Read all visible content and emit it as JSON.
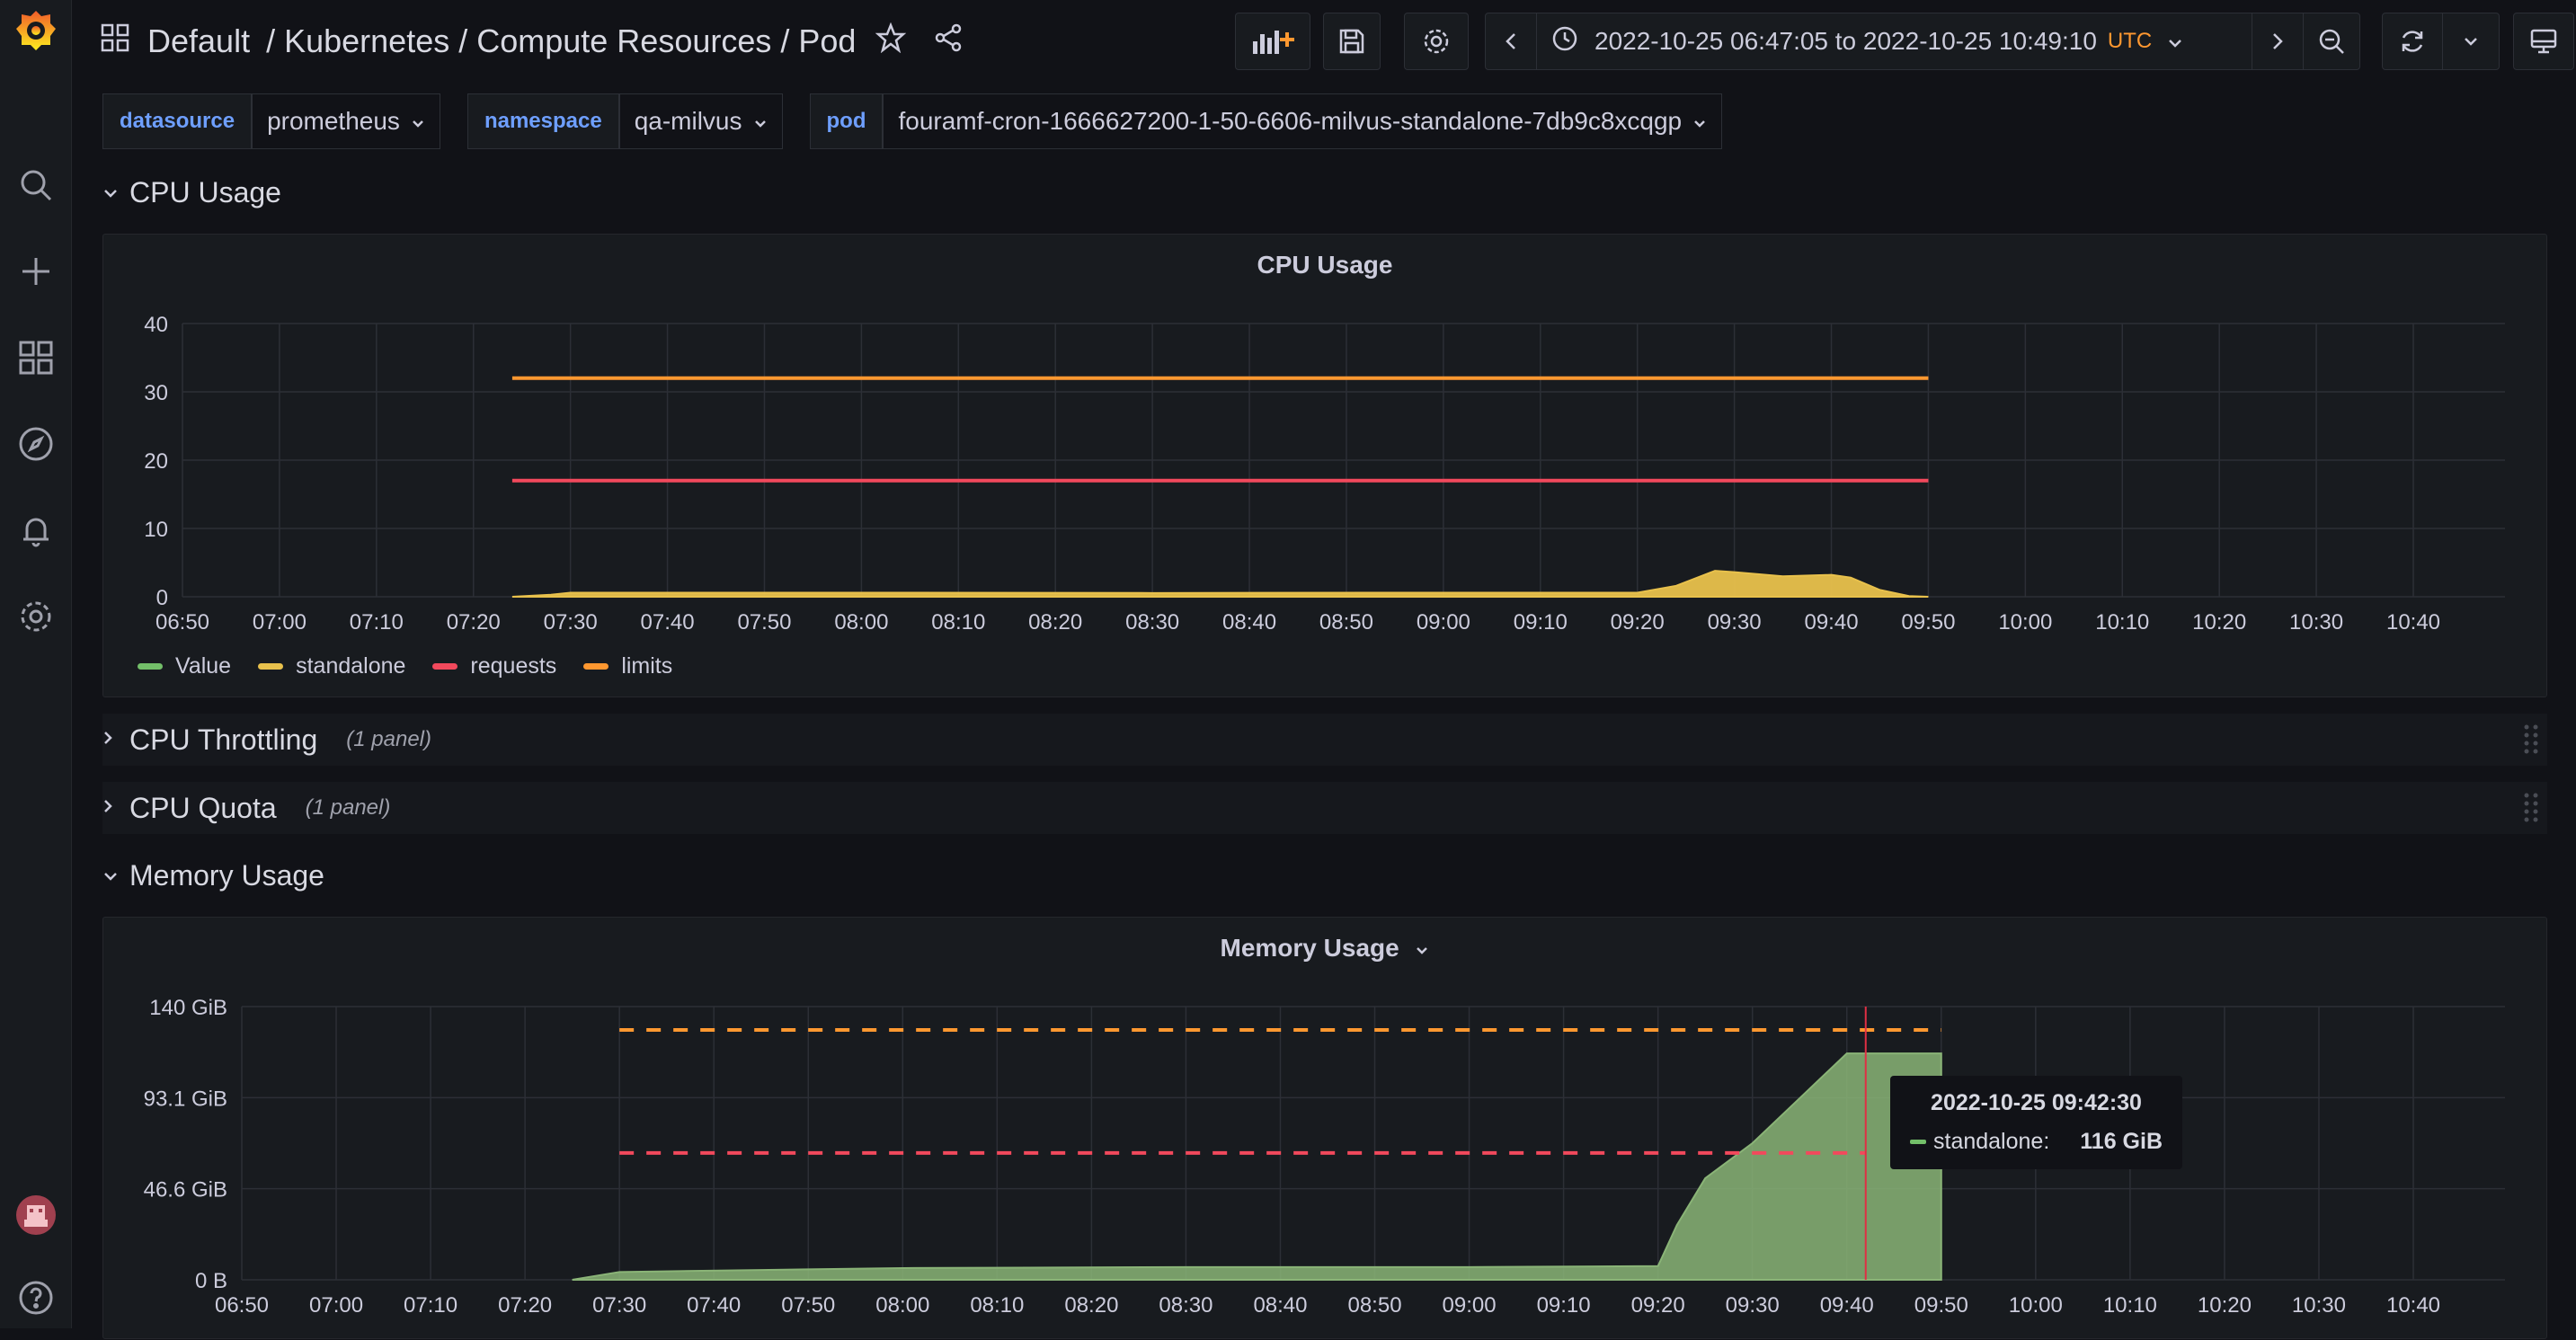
{
  "breadcrumb": {
    "root": "Default",
    "path": "/ Kubernetes / Compute Resources / Pod"
  },
  "timepicker": {
    "range": "2022-10-25 06:47:05 to 2022-10-25 10:49:10",
    "tz": "UTC"
  },
  "variables": [
    {
      "label": "datasource",
      "value": "prometheus"
    },
    {
      "label": "namespace",
      "value": "qa-milvus"
    },
    {
      "label": "pod",
      "value": "fouramf-cron-1666627200-1-50-6606-milvus-standalone-7db9c8xcqgp"
    }
  ],
  "rows": {
    "cpu_usage": "CPU Usage",
    "cpu_throttling": "CPU Throttling",
    "cpu_throttling_count": "(1 panel)",
    "cpu_quota": "CPU Quota",
    "cpu_quota_count": "(1 panel)",
    "memory_usage": "Memory Usage"
  },
  "colors": {
    "green": "#73bf69",
    "yellow": "#e8c14c",
    "red": "#f2495c",
    "orange": "#ff9830",
    "accent": "#ff7f00",
    "crosshair": "#e02f44"
  },
  "cpu_panel": {
    "title": "CPU Usage",
    "legend": [
      {
        "name": "Value",
        "color": "#73bf69"
      },
      {
        "name": "standalone",
        "color": "#e8c14c"
      },
      {
        "name": "requests",
        "color": "#f2495c"
      },
      {
        "name": "limits",
        "color": "#ff9830"
      }
    ]
  },
  "memory_panel": {
    "title": "Memory Usage"
  },
  "tooltip": {
    "time": "2022-10-25 09:42:30",
    "series": "standalone:",
    "value": "116 GiB"
  },
  "chart_data": [
    {
      "type": "area",
      "title": "CPU Usage",
      "x_ticks": [
        "06:50",
        "07:00",
        "07:10",
        "07:20",
        "07:30",
        "07:40",
        "07:50",
        "08:00",
        "08:10",
        "08:20",
        "08:30",
        "08:40",
        "08:50",
        "09:00",
        "09:10",
        "09:20",
        "09:30",
        "09:40",
        "09:50",
        "10:00",
        "10:10",
        "10:20",
        "10:30",
        "10:40"
      ],
      "y_ticks": [
        "0",
        "10",
        "20",
        "30",
        "40"
      ],
      "ylim": [
        0,
        40
      ],
      "series": [
        {
          "name": "standalone",
          "kind": "area",
          "x": [
            "07:24",
            "07:28",
            "07:30",
            "08:00",
            "08:30",
            "09:00",
            "09:20",
            "09:24",
            "09:28",
            "09:30",
            "09:35",
            "09:40",
            "09:42",
            "09:45",
            "09:48",
            "09:50"
          ],
          "values": [
            0,
            0.3,
            0.6,
            0.6,
            0.55,
            0.6,
            0.6,
            1.6,
            3.8,
            3.6,
            3.0,
            3.2,
            2.8,
            1.0,
            0.1,
            0
          ]
        },
        {
          "name": "requests",
          "kind": "line",
          "x": [
            "07:24",
            "09:50"
          ],
          "values": [
            17,
            17
          ]
        },
        {
          "name": "limits",
          "kind": "line",
          "x": [
            "07:24",
            "09:50"
          ],
          "values": [
            32,
            32
          ]
        }
      ]
    },
    {
      "type": "area",
      "title": "Memory Usage",
      "x_ticks": [
        "06:50",
        "07:00",
        "07:10",
        "07:20",
        "07:30",
        "07:40",
        "07:50",
        "08:00",
        "08:10",
        "08:20",
        "08:30",
        "08:40",
        "08:50",
        "09:00",
        "09:10",
        "09:20",
        "09:30",
        "09:40",
        "09:50",
        "10:00",
        "10:10",
        "10:20",
        "10:30",
        "10:40"
      ],
      "y_ticks": [
        "0 B",
        "46.6 GiB",
        "93.1 GiB",
        "140 GiB"
      ],
      "ylim": [
        0,
        140
      ],
      "series": [
        {
          "name": "standalone",
          "kind": "area",
          "x": [
            "07:25",
            "07:30",
            "07:45",
            "08:00",
            "08:30",
            "09:00",
            "09:20",
            "09:22",
            "09:25",
            "09:30",
            "09:35",
            "09:40",
            "09:41",
            "09:50"
          ],
          "values": [
            0,
            4,
            5,
            6,
            6.5,
            6.5,
            7,
            28,
            52,
            70,
            93,
            116,
            116,
            116
          ]
        },
        {
          "name": "requests",
          "kind": "dashed",
          "x": [
            "07:30",
            "09:42"
          ],
          "values": [
            65,
            65
          ]
        },
        {
          "name": "limits",
          "kind": "dashed",
          "x": [
            "07:30",
            "09:50"
          ],
          "values": [
            128,
            128
          ]
        }
      ]
    }
  ]
}
